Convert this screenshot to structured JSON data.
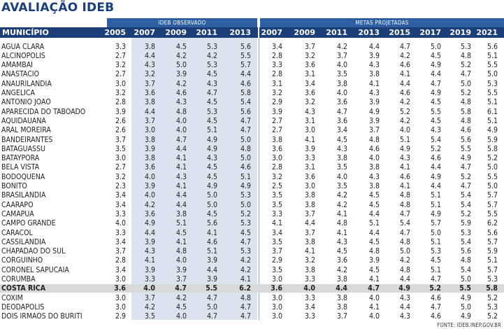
{
  "title": "AVALIAÇÃO IDEB",
  "group_observed": "IDEB OBSERVADO",
  "group_projected": "METAS PROJETADAS",
  "col_municipio": "MUNICÍPIO",
  "years_observed": [
    "2005",
    "2007",
    "2009",
    "2011",
    "2013"
  ],
  "years_projected": [
    "2007",
    "2009",
    "2011",
    "2013",
    "2015",
    "2017",
    "2019",
    "2021"
  ],
  "source": "FONTE: IDEB.INEP.GOV.BR",
  "rows": [
    {
      "name": "AGUA CLARA",
      "obs": [
        "3.3",
        "3.8",
        "4.5",
        "5.3",
        "5.6"
      ],
      "proj": [
        "3.4",
        "3.7",
        "4.2",
        "4.4",
        "4.7",
        "5.0",
        "5.3",
        "5.6"
      ]
    },
    {
      "name": "ALCINOPOLIS",
      "obs": [
        "2.7",
        "4.4",
        "4.2",
        "4.2",
        "5.5"
      ],
      "proj": [
        "2.8",
        "3.2",
        "3.7",
        "3.9",
        "4.2",
        "4.5",
        "4.8",
        "5.1"
      ]
    },
    {
      "name": "AMAMBAI",
      "obs": [
        "3.2",
        "4.3",
        "5.0",
        "5.3",
        "5.7"
      ],
      "proj": [
        "3.3",
        "3.6",
        "4.0",
        "4.3",
        "4.6",
        "4.9",
        "5.2",
        "5.5"
      ]
    },
    {
      "name": "ANASTACIO",
      "obs": [
        "2.7",
        "3.2",
        "3.9",
        "4.5",
        "4.4"
      ],
      "proj": [
        "2.8",
        "3.1",
        "3.5",
        "3.8",
        "4.1",
        "4.4",
        "4.7",
        "5.0"
      ]
    },
    {
      "name": "ANAURILANDIA",
      "obs": [
        "3.0",
        "3.7",
        "4.2",
        "4.3",
        "4.6"
      ],
      "proj": [
        "3.1",
        "3.4",
        "3.8",
        "4.1",
        "4.4",
        "4.7",
        "5.0",
        "5.3"
      ]
    },
    {
      "name": "ANGELICA",
      "obs": [
        "3.2",
        "3.6",
        "4.6",
        "4.7",
        "5.8"
      ],
      "proj": [
        "3.2",
        "3.6",
        "4.0",
        "4.3",
        "4.6",
        "4.9",
        "5.2",
        "5.5"
      ]
    },
    {
      "name": "ANTONIO JOAO",
      "obs": [
        "2.8",
        "3.8",
        "4.3",
        "4.5",
        "5.4"
      ],
      "proj": [
        "2.9",
        "3.2",
        "3.6",
        "3.9",
        "4.2",
        "4.5",
        "4.8",
        "5.1"
      ]
    },
    {
      "name": "APARECIDA DO TABOADO",
      "obs": [
        "3.9",
        "4.4",
        "4.8",
        "5.3",
        "5.6"
      ],
      "proj": [
        "3.9",
        "4.3",
        "4.7",
        "4.9",
        "5.2",
        "5.5",
        "5.8",
        "6.1"
      ]
    },
    {
      "name": "AQUIDAUANA",
      "obs": [
        "2.6",
        "3.7",
        "4.0",
        "4.5",
        "4.7"
      ],
      "proj": [
        "2.7",
        "3.1",
        "3.6",
        "3.9",
        "4.2",
        "4.5",
        "4.8",
        "5.1"
      ]
    },
    {
      "name": "ARAL MOREIRA",
      "obs": [
        "2.6",
        "3.0",
        "4.0",
        "5.1",
        "4.7"
      ],
      "proj": [
        "2.7",
        "3.0",
        "3.4",
        "3.7",
        "4.0",
        "4.3",
        "4.6",
        "4.9"
      ]
    },
    {
      "name": "BANDEIRANTES",
      "obs": [
        "3.7",
        "3.8",
        "4.7",
        "4.9",
        "5.0"
      ],
      "proj": [
        "3.8",
        "4.1",
        "4.5",
        "4.8",
        "5.1",
        "5.4",
        "5.6",
        "5.9"
      ]
    },
    {
      "name": "BATAGUASSU",
      "obs": [
        "3.5",
        "3.9",
        "4.4",
        "4.9",
        "4.8"
      ],
      "proj": [
        "3.6",
        "3.9",
        "4.3",
        "4.6",
        "4.9",
        "5.2",
        "5.5",
        "5.8"
      ]
    },
    {
      "name": "BATAYPORA",
      "obs": [
        "3.0",
        "3.8",
        "4.1",
        "4.3",
        "5.0"
      ],
      "proj": [
        "3.0",
        "3.3",
        "3.8",
        "4.0",
        "4.3",
        "4.6",
        "4.9",
        "5.2"
      ]
    },
    {
      "name": "BELA VISTA",
      "obs": [
        "2.7",
        "3.6",
        "4.1",
        "4.5",
        "4.6"
      ],
      "proj": [
        "2.8",
        "3.1",
        "3.5",
        "3.8",
        "4.1",
        "4.4",
        "4.7",
        "5.0"
      ]
    },
    {
      "name": "BODOQUENA",
      "obs": [
        "3.2",
        "4.0",
        "4.3",
        "4.5",
        "5.1"
      ],
      "proj": [
        "3.2",
        "3.6",
        "4.0",
        "4.3",
        "4.6",
        "4.9",
        "5.2",
        "5.5"
      ]
    },
    {
      "name": "BONITO",
      "obs": [
        "2.3",
        "3.9",
        "4.1",
        "4.9",
        "4.9"
      ],
      "proj": [
        "2.5",
        "3.0",
        "3.5",
        "3.8",
        "4.1",
        "4.4",
        "4.7",
        "5.0"
      ]
    },
    {
      "name": "BRASILANDIA",
      "obs": [
        "3.4",
        "4.0",
        "4.4",
        "5.0",
        "5.3"
      ],
      "proj": [
        "3.5",
        "3.8",
        "4.2",
        "4.5",
        "4.8",
        "5.1",
        "5.4",
        "5.7"
      ]
    },
    {
      "name": "CAARAPO",
      "obs": [
        "3.4",
        "4.2",
        "4.4",
        "5.0",
        "5.0"
      ],
      "proj": [
        "3.5",
        "3.8",
        "4.2",
        "4.5",
        "4.8",
        "5.1",
        "5.4",
        "5.7"
      ]
    },
    {
      "name": "CAMAPUA",
      "obs": [
        "3.3",
        "3.6",
        "3.8",
        "4.5",
        "5.2"
      ],
      "proj": [
        "3.3",
        "3.7",
        "4.1",
        "4.4",
        "4.7",
        "4.9",
        "5.2",
        "5.5"
      ]
    },
    {
      "name": "CAMPO GRANDE",
      "obs": [
        "4.0",
        "4.9",
        "5.1",
        "5.6",
        "5.3"
      ],
      "proj": [
        "4.1",
        "4.4",
        "4.8",
        "5.1",
        "5.4",
        "5.7",
        "5.9",
        "6.2"
      ]
    },
    {
      "name": "CARACOL",
      "obs": [
        "3.3",
        "4.4",
        "4.5",
        "4.1",
        "4.5"
      ],
      "proj": [
        "3.4",
        "3.7",
        "4.1",
        "4.4",
        "4.7",
        "5.0",
        "5.3",
        "5.6"
      ]
    },
    {
      "name": "CASSILANDIA",
      "obs": [
        "3.4",
        "3.9",
        "4.1",
        "4.6",
        "4.7"
      ],
      "proj": [
        "3.5",
        "3.8",
        "4.3",
        "4.5",
        "4.8",
        "5.1",
        "5.4",
        "5.7"
      ]
    },
    {
      "name": "CHAPADAO DO SUL",
      "obs": [
        "3.7",
        "4.3",
        "4.8",
        "5.1",
        "5.3"
      ],
      "proj": [
        "3.7",
        "4.1",
        "4.5",
        "4.8",
        "5.0",
        "5.3",
        "5.6",
        "5.9"
      ]
    },
    {
      "name": "CORGUINHO",
      "obs": [
        "2.8",
        "4.1",
        "4.0",
        "3.9",
        "4.2"
      ],
      "proj": [
        "2.9",
        "3.2",
        "3.6",
        "3.9",
        "4.2",
        "4.5",
        "4.8",
        "5.1"
      ]
    },
    {
      "name": "CORONEL SAPUCAIA",
      "obs": [
        "3.4",
        "3.9",
        "3.9",
        "4.4",
        "4.2"
      ],
      "proj": [
        "3.5",
        "3.8",
        "4.2",
        "4.5",
        "4.8",
        "5.1",
        "5.4",
        "5.7"
      ]
    },
    {
      "name": "CORUMBA",
      "obs": [
        "3.0",
        "3.3",
        "3.7",
        "3.9",
        "4.1"
      ],
      "proj": [
        "3.0",
        "3.3",
        "3.8",
        "4.1",
        "4.4",
        "4.7",
        "5.0",
        "5.3"
      ]
    },
    {
      "name": "COSTA RICA",
      "obs": [
        "3.6",
        "4.0",
        "4.7",
        "5.5",
        "6.2"
      ],
      "proj": [
        "3.6",
        "4.0",
        "4.4",
        "4.7",
        "4.9",
        "5.2",
        "5.5",
        "5.8"
      ],
      "highlight": true
    },
    {
      "name": "COXIM",
      "obs": [
        "3.0",
        "3.7",
        "4.2",
        "4.7",
        "4.8"
      ],
      "proj": [
        "3.0",
        "3.3",
        "3.8",
        "4.0",
        "4.3",
        "4.6",
        "4.9",
        "5.2"
      ]
    },
    {
      "name": "DEODAPOLIS",
      "obs": [
        "3.0",
        "4.2",
        "4.5",
        "5.0",
        "4.7"
      ],
      "proj": [
        "3.0",
        "3.4",
        "3.8",
        "4.1",
        "4.4",
        "4.7",
        "5.0",
        "5.3"
      ]
    },
    {
      "name": "DOIS IRMAOS DO BURITI",
      "obs": [
        "2.9",
        "3.5",
        "4.0",
        "4.7",
        "4.7"
      ],
      "proj": [
        "3.0",
        "3.3",
        "3.7",
        "4.0",
        "4.3",
        "4.6",
        "4.9",
        "5.2"
      ]
    }
  ]
}
